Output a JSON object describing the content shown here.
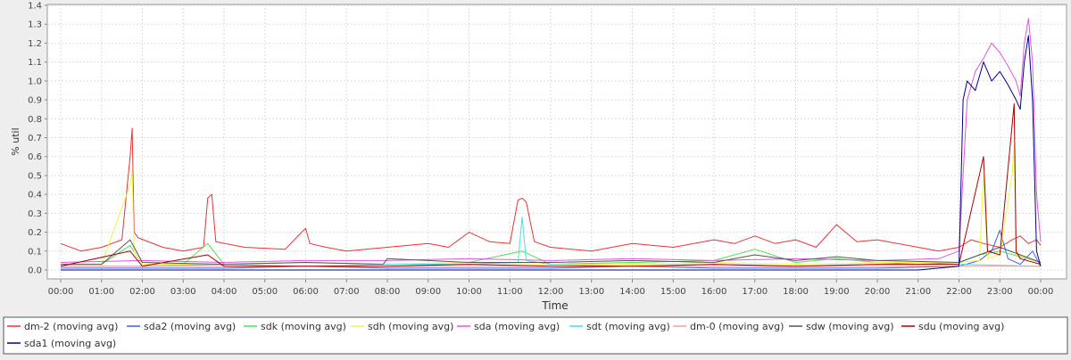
{
  "chart_data": {
    "type": "line",
    "title": "",
    "xlabel": "Time",
    "ylabel": "% util",
    "xlim": [
      0,
      24
    ],
    "ylim": [
      0,
      1.4
    ],
    "grid": true,
    "legend_position": "bottom",
    "x_ticks": [
      {
        "x": 0,
        "label": "00:00"
      },
      {
        "x": 1,
        "label": "01:00"
      },
      {
        "x": 2,
        "label": "02:00"
      },
      {
        "x": 3,
        "label": "03:00"
      },
      {
        "x": 4,
        "label": "04:00"
      },
      {
        "x": 5,
        "label": "05:00"
      },
      {
        "x": 6,
        "label": "06:00"
      },
      {
        "x": 7,
        "label": "07:00"
      },
      {
        "x": 8,
        "label": "08:00"
      },
      {
        "x": 9,
        "label": "09:00"
      },
      {
        "x": 10,
        "label": "10:00"
      },
      {
        "x": 11,
        "label": "11:00"
      },
      {
        "x": 12,
        "label": "12:00"
      },
      {
        "x": 13,
        "label": "13:00"
      },
      {
        "x": 14,
        "label": "14:00"
      },
      {
        "x": 15,
        "label": "15:00"
      },
      {
        "x": 16,
        "label": "16:00"
      },
      {
        "x": 17,
        "label": "17:00"
      },
      {
        "x": 18,
        "label": "18:00"
      },
      {
        "x": 19,
        "label": "19:00"
      },
      {
        "x": 20,
        "label": "20:00"
      },
      {
        "x": 21,
        "label": "21:00"
      },
      {
        "x": 22,
        "label": "22:00"
      },
      {
        "x": 23,
        "label": "23:00"
      },
      {
        "x": 24,
        "label": "00:00"
      }
    ],
    "y_ticks": [
      {
        "y": 0.0,
        "label": "0.0"
      },
      {
        "y": 0.1,
        "label": "0.1"
      },
      {
        "y": 0.2,
        "label": "0.2"
      },
      {
        "y": 0.3,
        "label": "0.3"
      },
      {
        "y": 0.4,
        "label": "0.4"
      },
      {
        "y": 0.5,
        "label": "0.5"
      },
      {
        "y": 0.6,
        "label": "0.6"
      },
      {
        "y": 0.7,
        "label": "0.7"
      },
      {
        "y": 0.8,
        "label": "0.8"
      },
      {
        "y": 0.9,
        "label": "0.9"
      },
      {
        "y": 1.0,
        "label": "1.0"
      },
      {
        "y": 1.1,
        "label": "1.1"
      },
      {
        "y": 1.2,
        "label": "1.2"
      },
      {
        "y": 1.3,
        "label": "1.3"
      },
      {
        "y": 1.4,
        "label": "1.4"
      }
    ],
    "series": [
      {
        "name": "dm-2 (moving avg)",
        "color": "#e83434",
        "x": [
          0,
          0.5,
          1,
          1.5,
          1.7,
          1.75,
          1.8,
          1.9,
          2.5,
          3,
          3.5,
          3.6,
          3.7,
          3.8,
          4.5,
          5.5,
          5.9,
          6,
          6.1,
          6.5,
          7,
          8,
          9,
          9.5,
          10,
          10.5,
          11,
          11.2,
          11.3,
          11.4,
          11.6,
          12,
          13,
          14,
          15,
          16,
          16.5,
          17,
          17.5,
          18,
          18.5,
          19,
          19.5,
          20,
          21,
          21.5,
          22,
          22.3,
          22.6,
          23,
          23.3,
          23.5,
          23.7,
          23.9,
          24
        ],
        "y": [
          0.14,
          0.1,
          0.12,
          0.16,
          0.6,
          0.75,
          0.2,
          0.17,
          0.12,
          0.1,
          0.12,
          0.38,
          0.4,
          0.15,
          0.12,
          0.11,
          0.2,
          0.22,
          0.14,
          0.12,
          0.1,
          0.12,
          0.14,
          0.12,
          0.2,
          0.15,
          0.14,
          0.37,
          0.38,
          0.36,
          0.15,
          0.12,
          0.1,
          0.14,
          0.12,
          0.16,
          0.14,
          0.18,
          0.14,
          0.16,
          0.12,
          0.24,
          0.15,
          0.16,
          0.12,
          0.1,
          0.12,
          0.16,
          0.14,
          0.12,
          0.16,
          0.18,
          0.14,
          0.16,
          0.13
        ]
      },
      {
        "name": "sda2 (moving avg)",
        "color": "#3d5cf0",
        "x": [
          0,
          2,
          4,
          6,
          8,
          10,
          12,
          14,
          16,
          18,
          20,
          22,
          22.5,
          22.8,
          23,
          23.2,
          23.5,
          23.8,
          24
        ],
        "y": [
          0.01,
          0.01,
          0.01,
          0.02,
          0.01,
          0.01,
          0.01,
          0.02,
          0.01,
          0.01,
          0.01,
          0.02,
          0.05,
          0.1,
          0.21,
          0.06,
          0.03,
          0.1,
          0.02
        ]
      },
      {
        "name": "sdk (moving avg)",
        "color": "#4ee04e",
        "x": [
          0,
          1,
          1.7,
          2,
          3,
          3.6,
          4,
          6,
          8,
          10,
          11.3,
          12,
          14,
          16,
          17,
          18,
          19,
          20,
          21,
          22,
          22.5,
          23,
          23.5,
          24
        ],
        "y": [
          0.03,
          0.03,
          0.13,
          0.03,
          0.03,
          0.14,
          0.03,
          0.04,
          0.03,
          0.04,
          0.1,
          0.03,
          0.04,
          0.05,
          0.11,
          0.04,
          0.06,
          0.04,
          0.03,
          0.04,
          0.08,
          0.1,
          0.07,
          0.04
        ]
      },
      {
        "name": "sdh (moving avg)",
        "color": "#f2f24a",
        "x": [
          0,
          1,
          1.7,
          1.75,
          1.8,
          2,
          3,
          4,
          6,
          8,
          10,
          12,
          14,
          16,
          18,
          20,
          22,
          22.5,
          22.6,
          22.7,
          23,
          23.3,
          23.35,
          23.4,
          24
        ],
        "y": [
          0.03,
          0.03,
          0.45,
          0.52,
          0.1,
          0.03,
          0.03,
          0.03,
          0.04,
          0.03,
          0.04,
          0.03,
          0.03,
          0.04,
          0.03,
          0.04,
          0.04,
          0.05,
          0.5,
          0.06,
          0.08,
          0.5,
          0.65,
          0.08,
          0.04
        ]
      },
      {
        "name": "sda (moving avg)",
        "color": "#e055e0",
        "x": [
          0,
          2,
          4,
          6,
          8,
          10,
          12,
          14,
          16,
          18,
          20,
          21.5,
          22,
          22.1,
          22.2,
          22.4,
          22.6,
          22.8,
          23,
          23.2,
          23.4,
          23.5,
          23.6,
          23.7,
          23.8,
          23.9,
          24
        ],
        "y": [
          0.04,
          0.05,
          0.04,
          0.05,
          0.05,
          0.06,
          0.05,
          0.06,
          0.05,
          0.06,
          0.05,
          0.06,
          0.1,
          0.5,
          0.9,
          1.05,
          1.12,
          1.2,
          1.15,
          1.08,
          1.0,
          0.92,
          1.2,
          1.33,
          1.1,
          0.4,
          0.15
        ]
      },
      {
        "name": "sdt (moving avg)",
        "color": "#45e0e0",
        "x": [
          0,
          2,
          4,
          6,
          8,
          10,
          11.2,
          11.3,
          11.4,
          12,
          14,
          16,
          18,
          20,
          22,
          24
        ],
        "y": [
          0.02,
          0.02,
          0.03,
          0.02,
          0.03,
          0.03,
          0.04,
          0.28,
          0.05,
          0.03,
          0.02,
          0.03,
          0.02,
          0.03,
          0.03,
          0.02
        ]
      },
      {
        "name": "dm-0 (moving avg)",
        "color": "#f0a0a0",
        "x": [
          0,
          3,
          6,
          9,
          12,
          15,
          18,
          21,
          24
        ],
        "y": [
          0.02,
          0.02,
          0.02,
          0.02,
          0.02,
          0.02,
          0.02,
          0.02,
          0.02
        ]
      },
      {
        "name": "sdw (moving avg)",
        "color": "#555555",
        "x": [
          0,
          1,
          1.7,
          2,
          4,
          6,
          7.9,
          8,
          10,
          12,
          14,
          16,
          17,
          18,
          19,
          20,
          22,
          23,
          24
        ],
        "y": [
          0.03,
          0.03,
          0.16,
          0.04,
          0.03,
          0.04,
          0.03,
          0.06,
          0.04,
          0.04,
          0.05,
          0.04,
          0.08,
          0.05,
          0.07,
          0.05,
          0.04,
          0.12,
          0.04
        ]
      },
      {
        "name": "sdu (moving avg)",
        "color": "#aa0000",
        "x": [
          0,
          1.7,
          2,
          3.6,
          4,
          6,
          8,
          10,
          12,
          14,
          16,
          18,
          20,
          22,
          22.6,
          22.7,
          23,
          23.35,
          23.4,
          23.5,
          24
        ],
        "y": [
          0.02,
          0.1,
          0.02,
          0.08,
          0.02,
          0.02,
          0.02,
          0.03,
          0.02,
          0.02,
          0.03,
          0.02,
          0.03,
          0.03,
          0.6,
          0.1,
          0.08,
          0.88,
          0.1,
          0.06,
          0.03
        ]
      },
      {
        "name": "sda1 (moving avg)",
        "color": "#00008b",
        "x": [
          0,
          3,
          6,
          9,
          12,
          15,
          18,
          21,
          22,
          22.1,
          22.2,
          22.4,
          22.6,
          22.8,
          23,
          23.2,
          23.4,
          23.5,
          23.6,
          23.7,
          23.8,
          23.9,
          24
        ],
        "y": [
          0.0,
          0.0,
          0.0,
          0.0,
          0.0,
          0.0,
          0.0,
          0.0,
          0.02,
          0.9,
          1.0,
          0.95,
          1.1,
          1.0,
          1.05,
          0.98,
          0.9,
          0.85,
          1.1,
          1.24,
          0.9,
          0.1,
          0.02
        ]
      }
    ]
  }
}
